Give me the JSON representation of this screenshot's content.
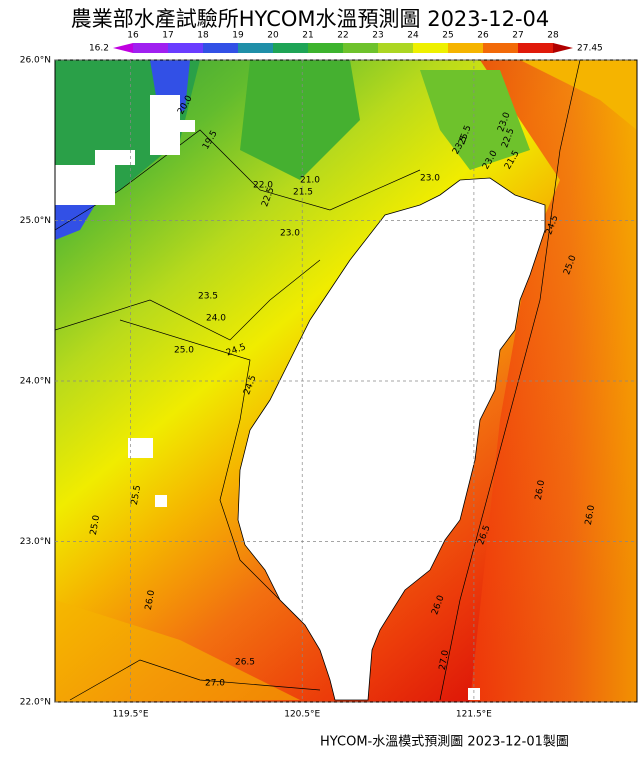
{
  "header": {
    "title": "農業部水產試驗所HYCOM水溫預測圖 2023-12-04"
  },
  "colorbar": {
    "min": {
      "value": 16.2,
      "label": "16.2"
    },
    "max": {
      "value": 27.45,
      "label": "27.45"
    },
    "ticks": [
      16,
      17,
      18,
      19,
      20,
      21,
      22,
      23,
      24,
      25,
      26,
      27,
      28
    ],
    "colors": [
      "#a020f0",
      "#6a3cff",
      "#3250e6",
      "#1f8fa8",
      "#1ea456",
      "#3db32e",
      "#6ec22c",
      "#acd622",
      "#eef000",
      "#f5b400",
      "#f26a08",
      "#e01a0a"
    ],
    "under_color": "#c000e0",
    "over_color": "#b00000"
  },
  "map": {
    "xlim": [
      119.06,
      122.45
    ],
    "ylim": [
      22,
      26
    ],
    "xticks": [
      {
        "value": 119.5,
        "label": "119.5°E"
      },
      {
        "value": 120.5,
        "label": "120.5°E"
      },
      {
        "value": 121.5,
        "label": "121.5°E"
      }
    ],
    "yticks": [
      {
        "value": 22,
        "label": "22.0°N"
      },
      {
        "value": 23,
        "label": "23.0°N"
      },
      {
        "value": 24,
        "label": "24.0°N"
      },
      {
        "value": 25,
        "label": "25.0°N"
      },
      {
        "value": 26,
        "label": "26.0°N"
      }
    ],
    "contour_labels": [
      "19.5",
      "20.0",
      "21.0",
      "21.5",
      "22.0",
      "22.5",
      "23.0",
      "23.0",
      "23.5",
      "24.0",
      "24.5",
      "25.0",
      "25.5",
      "24.5",
      "25.0",
      "26.0",
      "26.5",
      "27.0",
      "23.5",
      "23.0",
      "22.5",
      "21.5",
      "23.0",
      "24.5",
      "25.0",
      "25.5",
      "26.0",
      "26.0",
      "26.5",
      "26.0",
      "27.0"
    ]
  },
  "footer": "HYCOM-水溫模式預測圖 2023-12-01製圖"
}
